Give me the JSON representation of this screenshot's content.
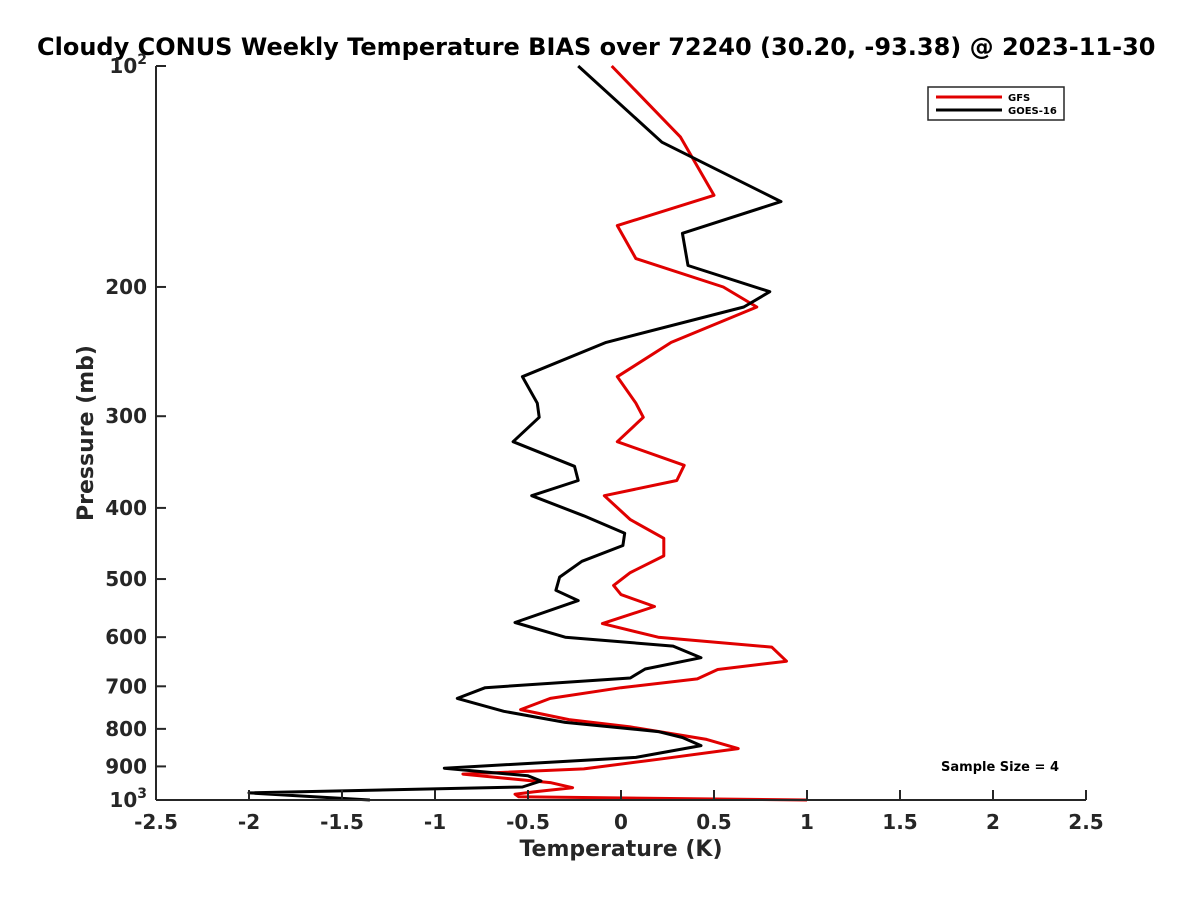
{
  "chart_data": {
    "type": "line",
    "title": "Cloudy CONUS Weekly Temperature BIAS over 72240 (30.20, -93.38) @ 2023-11-30",
    "xlabel": "Temperature (K)",
    "ylabel": "Pressure (mb)",
    "xlim": [
      -2.5,
      2.5
    ],
    "ylim": [
      100,
      1000
    ],
    "yscale": "log",
    "y_reversed": true,
    "x_ticks": [
      "-2.5",
      "-2",
      "-1.5",
      "-1",
      "-0.5",
      "0",
      "0.5",
      "1",
      "1.5",
      "2",
      "2.5"
    ],
    "y_ticks": [
      {
        "value": 100,
        "base": "10",
        "exp": "2"
      },
      {
        "value": 200,
        "label": "200"
      },
      {
        "value": 300,
        "label": "300"
      },
      {
        "value": 400,
        "label": "400"
      },
      {
        "value": 500,
        "label": "500"
      },
      {
        "value": 600,
        "label": "600"
      },
      {
        "value": 700,
        "label": "700"
      },
      {
        "value": 800,
        "label": "800"
      },
      {
        "value": 900,
        "label": "900"
      },
      {
        "value": 1000,
        "base": "10",
        "exp": "3"
      }
    ],
    "grid": false,
    "legend_position": "top-right",
    "annotation": "Sample Size = 4",
    "series": [
      {
        "name": "GFS",
        "color": "#e00000",
        "points": [
          [
            -0.05,
            100
          ],
          [
            0.32,
            125
          ],
          [
            0.5,
            150
          ],
          [
            -0.02,
            165
          ],
          [
            0.08,
            183
          ],
          [
            0.55,
            200
          ],
          [
            0.73,
            213
          ],
          [
            0.27,
            238
          ],
          [
            -0.02,
            265
          ],
          [
            0.08,
            288
          ],
          [
            0.12,
            301
          ],
          [
            -0.02,
            325
          ],
          [
            0.34,
            350
          ],
          [
            0.3,
            367
          ],
          [
            -0.09,
            385
          ],
          [
            0.05,
            415
          ],
          [
            0.23,
            440
          ],
          [
            0.23,
            465
          ],
          [
            0.05,
            490
          ],
          [
            -0.04,
            510
          ],
          [
            0.0,
            525
          ],
          [
            0.18,
            545
          ],
          [
            -0.1,
            575
          ],
          [
            0.2,
            600
          ],
          [
            0.81,
            619
          ],
          [
            0.89,
            647
          ],
          [
            0.52,
            664
          ],
          [
            0.41,
            684
          ],
          [
            0.0,
            703
          ],
          [
            -0.38,
            727
          ],
          [
            -0.54,
            753
          ],
          [
            -0.28,
            777
          ],
          [
            0.05,
            795
          ],
          [
            0.46,
            827
          ],
          [
            0.63,
            851
          ],
          [
            0.2,
            880
          ],
          [
            -0.2,
            907
          ],
          [
            -0.85,
            922
          ],
          [
            -0.38,
            947
          ],
          [
            -0.26,
            962
          ],
          [
            -0.47,
            975
          ],
          [
            -0.57,
            982
          ],
          [
            -0.55,
            990
          ],
          [
            1.0,
            1000
          ]
        ]
      },
      {
        "name": "GOES-16",
        "color": "#000000",
        "points": [
          [
            -0.23,
            100
          ],
          [
            0.22,
            127
          ],
          [
            0.86,
            153
          ],
          [
            0.33,
            169
          ],
          [
            0.36,
            187
          ],
          [
            0.8,
            203
          ],
          [
            0.66,
            213
          ],
          [
            -0.08,
            238
          ],
          [
            -0.53,
            265
          ],
          [
            -0.45,
            288
          ],
          [
            -0.44,
            301
          ],
          [
            -0.58,
            325
          ],
          [
            -0.25,
            351
          ],
          [
            -0.23,
            367
          ],
          [
            -0.48,
            385
          ],
          [
            -0.2,
            410
          ],
          [
            0.02,
            433
          ],
          [
            0.01,
            450
          ],
          [
            -0.21,
            473
          ],
          [
            -0.33,
            497
          ],
          [
            -0.35,
            518
          ],
          [
            -0.23,
            535
          ],
          [
            -0.57,
            573
          ],
          [
            -0.3,
            600
          ],
          [
            0.28,
            617
          ],
          [
            0.43,
            640
          ],
          [
            0.13,
            663
          ],
          [
            0.05,
            682
          ],
          [
            -0.73,
            703
          ],
          [
            -0.88,
            727
          ],
          [
            -0.63,
            757
          ],
          [
            -0.3,
            784
          ],
          [
            0.2,
            807
          ],
          [
            0.33,
            822
          ],
          [
            0.43,
            843
          ],
          [
            0.08,
            875
          ],
          [
            -0.95,
            905
          ],
          [
            -0.5,
            927
          ],
          [
            -0.43,
            942
          ],
          [
            -0.53,
            960
          ],
          [
            -2.0,
            978
          ],
          [
            -1.35,
            1000
          ]
        ]
      }
    ]
  }
}
